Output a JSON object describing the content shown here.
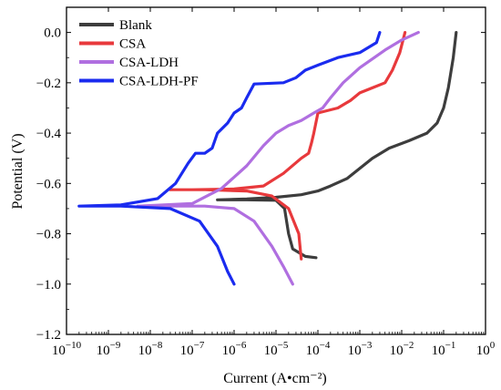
{
  "chart_data": {
    "type": "line",
    "title": "",
    "xlabel": "Current (A•cm⁻²)",
    "ylabel": "Potential (V)",
    "x_scale": "log",
    "xlim": [
      1e-10,
      1
    ],
    "ylim": [
      -1.2,
      0.1
    ],
    "x_ticks": [
      1e-10,
      1e-09,
      1e-08,
      1e-07,
      1e-06,
      1e-05,
      0.0001,
      0.001,
      0.01,
      0.1,
      1
    ],
    "x_tick_labels": [
      {
        "base": "10",
        "exp": "−10"
      },
      {
        "base": "10",
        "exp": "−9"
      },
      {
        "base": "10",
        "exp": "−8"
      },
      {
        "base": "10",
        "exp": "−7"
      },
      {
        "base": "10",
        "exp": "−6"
      },
      {
        "base": "10",
        "exp": "−5"
      },
      {
        "base": "10",
        "exp": "−4"
      },
      {
        "base": "10",
        "exp": "−3"
      },
      {
        "base": "10",
        "exp": "−2"
      },
      {
        "base": "10",
        "exp": "−1"
      },
      {
        "base": "10",
        "exp": "0"
      }
    ],
    "y_ticks": [
      0.0,
      -0.2,
      -0.4,
      -0.6,
      -0.8,
      -1.0,
      -1.2
    ],
    "y_tick_labels": [
      "0.0",
      "−0.2",
      "−0.4",
      "−0.6",
      "−0.8",
      "−1.0",
      "−1.2"
    ],
    "grid": false,
    "legend_position": "top-left",
    "series": [
      {
        "name": "Blank",
        "color": "#3d3d3d",
        "points": [
          [
            0.2,
            0.0
          ],
          [
            0.17,
            -0.1
          ],
          [
            0.13,
            -0.22
          ],
          [
            0.1,
            -0.3
          ],
          [
            0.07,
            -0.36
          ],
          [
            0.04,
            -0.4
          ],
          [
            0.015,
            -0.43
          ],
          [
            0.005,
            -0.46
          ],
          [
            0.002,
            -0.5
          ],
          [
            0.001,
            -0.54
          ],
          [
            0.0005,
            -0.58
          ],
          [
            0.0002,
            -0.61
          ],
          [
            0.0001,
            -0.63
          ],
          [
            4e-05,
            -0.645
          ],
          [
            1e-05,
            -0.655
          ],
          [
            2e-06,
            -0.662
          ],
          [
            4e-07,
            -0.665
          ],
          [
            2e-06,
            -0.665
          ],
          [
            1e-05,
            -0.667
          ],
          [
            1.6e-05,
            -0.7
          ],
          [
            2e-05,
            -0.8
          ],
          [
            2.5e-05,
            -0.86
          ],
          [
            5e-05,
            -0.89
          ],
          [
            9e-05,
            -0.895
          ]
        ]
      },
      {
        "name": "CSA",
        "color": "#e8393c",
        "points": [
          [
            0.012,
            0.0
          ],
          [
            0.009,
            -0.08
          ],
          [
            0.006,
            -0.15
          ],
          [
            0.004,
            -0.2
          ],
          [
            0.002,
            -0.22
          ],
          [
            0.001,
            -0.24
          ],
          [
            0.0006,
            -0.27
          ],
          [
            0.0003,
            -0.3
          ],
          [
            0.0001,
            -0.32
          ],
          [
            8e-05,
            -0.4
          ],
          [
            7e-05,
            -0.44
          ],
          [
            6e-05,
            -0.48
          ],
          [
            4e-05,
            -0.5
          ],
          [
            1.5e-05,
            -0.56
          ],
          [
            5e-06,
            -0.61
          ],
          [
            1e-06,
            -0.622
          ],
          [
            1e-07,
            -0.625
          ],
          [
            3e-08,
            -0.625
          ],
          [
            2e-07,
            -0.625
          ],
          [
            2e-06,
            -0.63
          ],
          [
            8e-06,
            -0.65
          ],
          [
            2e-05,
            -0.7
          ],
          [
            3.5e-05,
            -0.8
          ],
          [
            4e-05,
            -0.9
          ]
        ]
      },
      {
        "name": "CSA-LDH",
        "color": "#b06fe0",
        "points": [
          [
            0.025,
            0.0
          ],
          [
            0.01,
            -0.03
          ],
          [
            0.004,
            -0.07
          ],
          [
            0.001,
            -0.14
          ],
          [
            0.0004,
            -0.2
          ],
          [
            0.0002,
            -0.26
          ],
          [
            0.00013,
            -0.3
          ],
          [
            8e-05,
            -0.32
          ],
          [
            4e-05,
            -0.35
          ],
          [
            2e-05,
            -0.37
          ],
          [
            1e-05,
            -0.4
          ],
          [
            5e-06,
            -0.45
          ],
          [
            2e-06,
            -0.53
          ],
          [
            5e-07,
            -0.62
          ],
          [
            1e-07,
            -0.68
          ],
          [
            5e-09,
            -0.69
          ],
          [
            2e-07,
            -0.69
          ],
          [
            1e-06,
            -0.7
          ],
          [
            3e-06,
            -0.75
          ],
          [
            8e-06,
            -0.85
          ],
          [
            1.5e-05,
            -0.93
          ],
          [
            2.5e-05,
            -1.0
          ]
        ]
      },
      {
        "name": "CSA-LDH-PF",
        "color": "#1a2bef",
        "points": [
          [
            0.003,
            0.0
          ],
          [
            0.0025,
            -0.04
          ],
          [
            0.001,
            -0.08
          ],
          [
            0.0003,
            -0.1
          ],
          [
            0.0001,
            -0.13
          ],
          [
            5e-05,
            -0.15
          ],
          [
            3e-05,
            -0.18
          ],
          [
            1.5e-05,
            -0.2
          ],
          [
            3e-06,
            -0.205
          ],
          [
            2e-06,
            -0.26
          ],
          [
            1.5e-06,
            -0.3
          ],
          [
            1e-06,
            -0.32
          ],
          [
            7e-07,
            -0.36
          ],
          [
            4e-07,
            -0.4
          ],
          [
            3e-07,
            -0.46
          ],
          [
            2e-07,
            -0.48
          ],
          [
            1.2e-07,
            -0.48
          ],
          [
            8e-08,
            -0.52
          ],
          [
            4e-08,
            -0.6
          ],
          [
            1.5e-08,
            -0.66
          ],
          [
            2e-09,
            -0.685
          ],
          [
            2e-10,
            -0.69
          ],
          [
            2e-09,
            -0.69
          ],
          [
            3e-08,
            -0.7
          ],
          [
            1.5e-07,
            -0.75
          ],
          [
            4e-07,
            -0.85
          ],
          [
            7e-07,
            -0.95
          ],
          [
            1e-06,
            -1.0
          ]
        ]
      }
    ]
  }
}
